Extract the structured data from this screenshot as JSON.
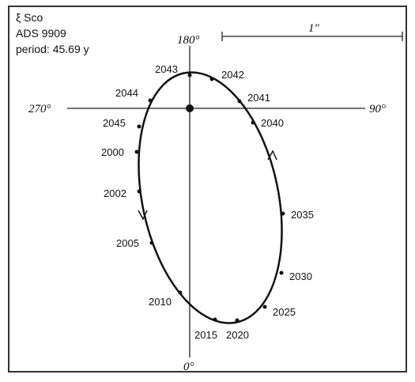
{
  "header": {
    "name": "ξ Sco",
    "catalog": "ADS 9909",
    "period": "period: 45.69 y"
  },
  "axes": {
    "top": "180°",
    "left": "270°",
    "right": "90°",
    "bottom": "0°"
  },
  "scale": {
    "label": "1″"
  },
  "epochs": [
    "2043",
    "2042",
    "2041",
    "2040",
    "2035",
    "2030",
    "2025",
    "2020",
    "2015",
    "2010",
    "2005",
    "2002",
    "2000",
    "2045",
    "2044"
  ]
}
